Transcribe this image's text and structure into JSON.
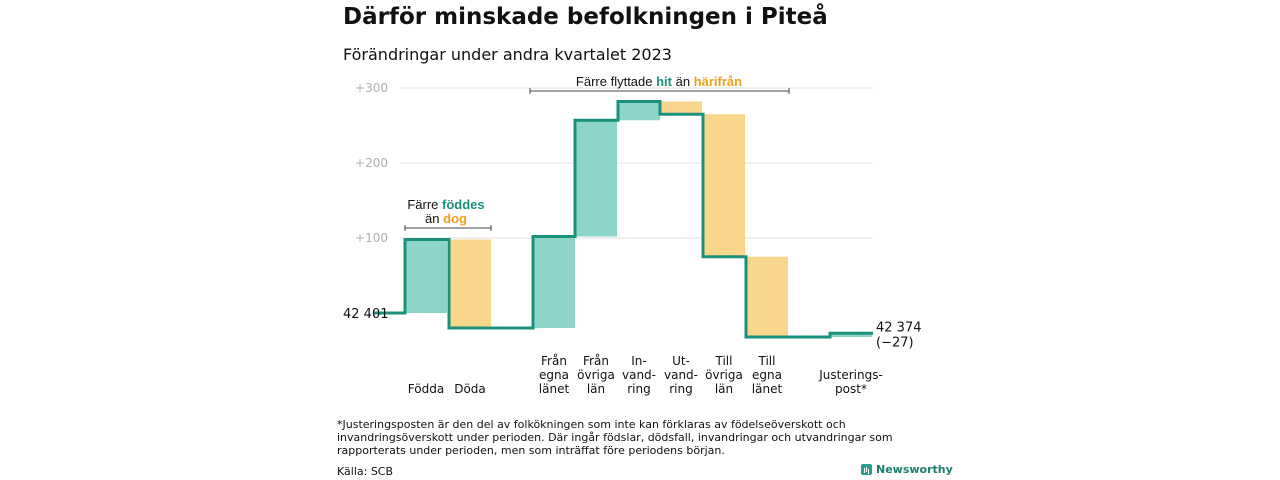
{
  "title": "Därför minskade befolkningen i Piteå",
  "subtitle": "Förändringar under andra kvartalet 2023",
  "chart_data": {
    "type": "waterfall",
    "start_value": 42401,
    "start_label": "42  401",
    "end_label_line1": "42 374",
    "end_label_line2": "(−27)",
    "y_ticks": [
      "+300",
      "+200",
      "+100"
    ],
    "ylim": [
      -20,
      305
    ],
    "colors": {
      "increase": "#8dd5c8",
      "decrease": "#fad58c",
      "line": "#1a917b",
      "grid": "#e0e0e0"
    },
    "steps": [
      {
        "label_lines": [
          "Födda"
        ],
        "value": 98
      },
      {
        "label_lines": [
          "Döda"
        ],
        "value": -118
      },
      {
        "label_lines": [
          "Från",
          "egna",
          "länet"
        ],
        "value": 122
      },
      {
        "label_lines": [
          "Från",
          "övriga",
          "län"
        ],
        "value": 155
      },
      {
        "label_lines": [
          "In-",
          "vand-",
          "ring"
        ],
        "value": 25
      },
      {
        "label_lines": [
          "Ut-",
          "vand-",
          "ring"
        ],
        "value": -17
      },
      {
        "label_lines": [
          "Till",
          "övriga",
          "län"
        ],
        "value": -190
      },
      {
        "label_lines": [
          "Till",
          "egna",
          "länet"
        ],
        "value": -107
      },
      {
        "label_lines": [
          "Justerings-",
          "post*"
        ],
        "value": 5
      }
    ],
    "annotations": [
      {
        "parts": [
          {
            "text": "Färre ",
            "color": "#111111",
            "bold": false
          },
          {
            "text": "föddes",
            "color": "#1a917b",
            "bold": true
          }
        ],
        "line2": [
          {
            "text": "än ",
            "color": "#111111",
            "bold": false
          },
          {
            "text": "dog",
            "color": "#f0a020",
            "bold": true
          }
        ]
      },
      {
        "parts": [
          {
            "text": "Färre flyttade ",
            "color": "#111111",
            "bold": false
          },
          {
            "text": "hit",
            "color": "#1a917b",
            "bold": true
          },
          {
            "text": "  än ",
            "color": "#111111",
            "bold": false
          },
          {
            "text": "härifrån",
            "color": "#f0a020",
            "bold": true
          }
        ]
      }
    ]
  },
  "footnote": "*Justeringsposten är den del av folkökningen som inte kan förklaras av födelseöverskott och invandringsöverskott under perioden. Där ingår födslar, dödsfall, invandringar och utvandringar som rapporterats under perioden, men som inträffat före periodens början.",
  "source": "Källa: SCB",
  "brand": "Newsworthy",
  "brand_icon": "bar-chart-logo-icon"
}
